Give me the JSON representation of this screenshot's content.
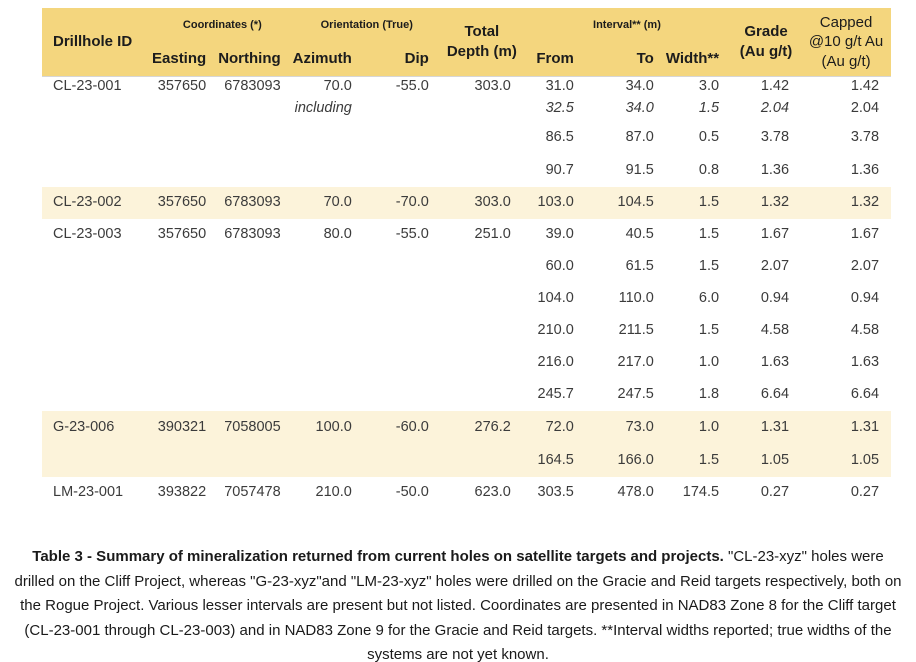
{
  "colors": {
    "header_bg": "#F4D67E",
    "highlight_bg": "#FCF3DA"
  },
  "table": {
    "header": {
      "drillhole_id": "Drillhole ID",
      "coordinates_group": "Coordinates (*)",
      "orientation_group": "Orientation (True)",
      "total_depth": "Total Depth (m)",
      "interval_group": "Interval** (m)",
      "grade": "Grade (Au g/t)",
      "capped": "Capped @10 g/t Au (Au g/t)",
      "easting": "Easting",
      "northing": "Northing",
      "azimuth": "Azimuth",
      "dip": "Dip",
      "from": "From",
      "to": "To",
      "width": "Width**"
    },
    "rows": [
      {
        "id": "CL-23-001",
        "easting": "357650",
        "northing": "6783093",
        "azimuth": "70.0",
        "dip": "-55.0",
        "depth": "303.0",
        "from": "31.0",
        "to": "34.0",
        "width": "3.0",
        "grade": "1.42",
        "capped": "1.42"
      },
      {
        "qualifier": "including",
        "from": "32.5",
        "to": "34.0",
        "width": "1.5",
        "grade": "2.04",
        "capped": "2.04",
        "italic": true
      },
      {
        "from": "86.5",
        "to": "87.0",
        "width": "0.5",
        "grade": "3.78",
        "capped": "3.78"
      },
      {
        "from": "90.7",
        "to": "91.5",
        "width": "0.8",
        "grade": "1.36",
        "capped": "1.36"
      },
      {
        "id": "CL-23-002",
        "easting": "357650",
        "northing": "6783093",
        "azimuth": "70.0",
        "dip": "-70.0",
        "depth": "303.0",
        "from": "103.0",
        "to": "104.5",
        "width": "1.5",
        "grade": "1.32",
        "capped": "1.32",
        "highlighted": true
      },
      {
        "id": "CL-23-003",
        "easting": "357650",
        "northing": "6783093",
        "azimuth": "80.0",
        "dip": "-55.0",
        "depth": "251.0",
        "from": "39.0",
        "to": "40.5",
        "width": "1.5",
        "grade": "1.67",
        "capped": "1.67"
      },
      {
        "from": "60.0",
        "to": "61.5",
        "width": "1.5",
        "grade": "2.07",
        "capped": "2.07"
      },
      {
        "from": "104.0",
        "to": "110.0",
        "width": "6.0",
        "grade": "0.94",
        "capped": "0.94"
      },
      {
        "from": "210.0",
        "to": "211.5",
        "width": "1.5",
        "grade": "4.58",
        "capped": "4.58"
      },
      {
        "from": "216.0",
        "to": "217.0",
        "width": "1.0",
        "grade": "1.63",
        "capped": "1.63"
      },
      {
        "from": "245.7",
        "to": "247.5",
        "width": "1.8",
        "grade": "6.64",
        "capped": "6.64"
      },
      {
        "id": "G-23-006",
        "easting": "390321",
        "northing": "7058005",
        "azimuth": "100.0",
        "dip": "-60.0",
        "depth": "276.2",
        "from": "72.0",
        "to": "73.0",
        "width": "1.0",
        "grade": "1.31",
        "capped": "1.31",
        "highlighted": true
      },
      {
        "from": "164.5",
        "to": "166.0",
        "width": "1.5",
        "grade": "1.05",
        "capped": "1.05",
        "highlighted": true
      },
      {
        "id": "LM-23-001",
        "easting": "393822",
        "northing": "7057478",
        "azimuth": "210.0",
        "dip": "-50.0",
        "depth": "623.0",
        "from": "303.5",
        "to": "478.0",
        "width": "174.5",
        "grade": "0.27",
        "capped": "0.27"
      }
    ]
  },
  "caption": {
    "bold": "Table 3 - Summary of mineralization returned from current holes on satellite targets and projects.",
    "text": "\"CL-23-xyz\" holes were drilled on the Cliff Project, whereas \"G-23-xyz\"and \"LM-23-xyz\" holes were drilled on the Gracie and Reid targets respectively, both on the Rogue Project. Various lesser intervals are present but not listed. Coordinates are presented in NAD83 Zone 8 for the Cliff target (CL-23-001 through CL-23-003) and in NAD83 Zone 9 for the Gracie and Reid targets. **Interval widths reported; true widths of the systems are not yet known."
  }
}
